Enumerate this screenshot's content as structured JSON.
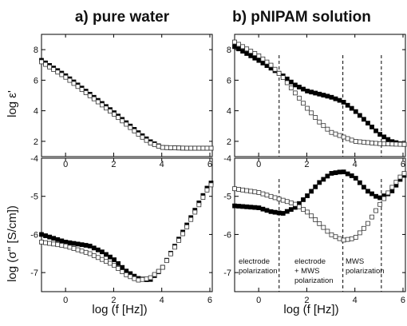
{
  "figure": {
    "panel_a_title": "a) pure water",
    "panel_b_title": "b) pNIPAM solution",
    "ylabel_top": "log ε'",
    "ylabel_bottom": "log (σ'' [S/cm])",
    "xlabel_a": "log (f [Hz])",
    "xlabel_b": "log (f [Hz])",
    "annotations": {
      "region1_line1": "electrode",
      "region1_line2": "polarization",
      "region2_line1": "electrode",
      "region2_line2": "+ MWS",
      "region2_line3": "polarization",
      "region3_line1": "MWS",
      "region3_line2": "polarization"
    },
    "marker_colors": {
      "filled": "#000000",
      "open": "#ffffff",
      "edge": "#333333"
    }
  },
  "chart_data": [
    {
      "id": "a-top",
      "type": "scatter",
      "xlim": [
        -1,
        6.1
      ],
      "ylim": [
        1,
        9
      ],
      "xticks": [
        0,
        2,
        4,
        6
      ],
      "yticks": [
        2,
        4,
        6,
        8
      ],
      "xlabel": "",
      "ylabel": "log ε'",
      "vlines": [],
      "series": [
        {
          "style": "filled",
          "x": [
            -1,
            0,
            1,
            2,
            3,
            3.5,
            4,
            5,
            6
          ],
          "y": [
            7.3,
            6.3,
            5.1,
            3.9,
            2.6,
            2.0,
            1.6,
            1.55,
            1.55
          ]
        },
        {
          "style": "open",
          "x": [
            -1,
            0,
            1,
            2,
            3,
            3.5,
            4,
            5,
            6
          ],
          "y": [
            7.2,
            6.2,
            5.0,
            3.8,
            2.5,
            1.9,
            1.6,
            1.55,
            1.55
          ]
        }
      ]
    },
    {
      "id": "b-top",
      "type": "scatter",
      "xlim": [
        -1,
        6.1
      ],
      "ylim": [
        1,
        9
      ],
      "xticks": [
        0,
        2,
        4,
        6
      ],
      "yticks": [
        2,
        4,
        6,
        8
      ],
      "xlabel": "",
      "ylabel": "",
      "vlines": [
        0.85,
        3.5,
        5.1
      ],
      "series": [
        {
          "style": "filled",
          "x": [
            -1,
            0,
            1,
            1.5,
            2,
            3,
            3.5,
            4,
            5,
            5.5,
            6
          ],
          "y": [
            8.2,
            7.3,
            6.3,
            5.7,
            5.3,
            4.9,
            4.6,
            4.0,
            2.5,
            2.0,
            1.8
          ]
        },
        {
          "style": "open",
          "x": [
            -1,
            0,
            0.5,
            1,
            1.5,
            2,
            2.5,
            3,
            3.5,
            4,
            5,
            6
          ],
          "y": [
            8.5,
            7.6,
            7.0,
            6.2,
            5.2,
            4.2,
            3.3,
            2.6,
            2.3,
            2.0,
            1.85,
            1.8
          ]
        }
      ]
    },
    {
      "id": "a-bottom",
      "type": "scatter",
      "xlim": [
        -1,
        6.1
      ],
      "ylim": [
        -7.5,
        -4
      ],
      "xticks": [
        0,
        2,
        4,
        6
      ],
      "yticks": [
        -7,
        -6,
        -5,
        -4
      ],
      "xlabel": "log (f [Hz])",
      "ylabel": "log (σ'' [S/cm])",
      "vlines": [],
      "series": [
        {
          "style": "filled",
          "x": [
            -1,
            0,
            1,
            1.5,
            2,
            2.5,
            3,
            3.5,
            4,
            5,
            6
          ],
          "y": [
            -6.0,
            -6.2,
            -6.3,
            -6.45,
            -6.65,
            -6.95,
            -7.15,
            -7.2,
            -6.9,
            -5.8,
            -4.65
          ]
        },
        {
          "style": "open",
          "x": [
            -1,
            0,
            1,
            2,
            2.5,
            3,
            3.5,
            4,
            5,
            6
          ],
          "y": [
            -6.2,
            -6.3,
            -6.5,
            -6.8,
            -7.05,
            -7.2,
            -7.15,
            -6.9,
            -5.85,
            -4.7
          ]
        }
      ]
    },
    {
      "id": "b-bottom",
      "type": "scatter",
      "xlim": [
        -1,
        6.1
      ],
      "ylim": [
        -7.5,
        -4
      ],
      "xticks": [
        0,
        2,
        4,
        6
      ],
      "yticks": [
        -7,
        -6,
        -5,
        -4
      ],
      "xlabel": "log (f [Hz])",
      "ylabel": "",
      "vlines": [
        0.85,
        3.5,
        5.1
      ],
      "series": [
        {
          "style": "filled",
          "x": [
            -1,
            0,
            0.5,
            1,
            1.5,
            2,
            2.5,
            3,
            3.5,
            4,
            4.5,
            5,
            5.5,
            6
          ],
          "y": [
            -5.25,
            -5.3,
            -5.4,
            -5.45,
            -5.3,
            -5.0,
            -4.65,
            -4.4,
            -4.35,
            -4.5,
            -4.85,
            -5.05,
            -4.9,
            -4.45
          ]
        },
        {
          "style": "open",
          "x": [
            -1,
            0,
            0.5,
            1,
            1.5,
            2,
            2.5,
            3,
            3.5,
            4,
            4.5,
            5,
            5.5,
            6
          ],
          "y": [
            -4.8,
            -4.9,
            -5.0,
            -5.1,
            -5.2,
            -5.4,
            -5.7,
            -6.0,
            -6.15,
            -6.1,
            -5.75,
            -5.25,
            -4.8,
            -4.4
          ]
        }
      ]
    }
  ]
}
